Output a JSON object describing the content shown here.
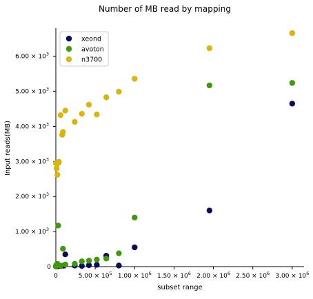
{
  "chart_data": {
    "type": "scatter",
    "title": "Number of MB read by mapping",
    "xlabel": "subset range",
    "ylabel": "Input reads(MB)",
    "xlim": [
      0,
      3150000
    ],
    "ylim": [
      0,
      6800
    ],
    "x_ticks": [
      {
        "value": 0,
        "label": "0"
      },
      {
        "value": 500000,
        "label": "5.00 × 10",
        "exp": "5"
      },
      {
        "value": 1000000,
        "label": "1.00 × 10",
        "exp": "6"
      },
      {
        "value": 1500000,
        "label": "1.50 × 10",
        "exp": "6"
      },
      {
        "value": 2000000,
        "label": "2.00 × 10",
        "exp": "6"
      },
      {
        "value": 2500000,
        "label": "2.50 × 10",
        "exp": "6"
      },
      {
        "value": 3000000,
        "label": "3.00 × 10",
        "exp": "6"
      }
    ],
    "y_ticks": [
      {
        "value": 0,
        "label": "0"
      },
      {
        "value": 1000,
        "label": "1.00 × 10",
        "exp": "3"
      },
      {
        "value": 2000,
        "label": "2.00 × 10",
        "exp": "3"
      },
      {
        "value": 3000,
        "label": "3.00 × 10",
        "exp": "3"
      },
      {
        "value": 4000,
        "label": "4.00 × 10",
        "exp": "3"
      },
      {
        "value": 5000,
        "label": "5.00 × 10",
        "exp": "3"
      },
      {
        "value": 6000,
        "label": "6.00 × 10",
        "exp": "3"
      }
    ],
    "legend_position": "top-left",
    "grid": false,
    "series": [
      {
        "name": "xeond",
        "color": "#0b0b5c",
        "points": [
          [
            1000,
            5
          ],
          [
            5000,
            8
          ],
          [
            10000,
            10
          ],
          [
            20000,
            15
          ],
          [
            30000,
            12
          ],
          [
            60000,
            20
          ],
          [
            100000,
            25
          ],
          [
            120000,
            350
          ],
          [
            240000,
            30
          ],
          [
            330000,
            20
          ],
          [
            420000,
            40
          ],
          [
            520000,
            50
          ],
          [
            640000,
            310
          ],
          [
            800000,
            30
          ],
          [
            1000000,
            550
          ],
          [
            1950000,
            1600
          ],
          [
            3000000,
            4650
          ]
        ]
      },
      {
        "name": "avoton",
        "color": "#3f9b0b",
        "points": [
          [
            1000,
            10
          ],
          [
            5000,
            40
          ],
          [
            10000,
            60
          ],
          [
            20000,
            80
          ],
          [
            30000,
            1170
          ],
          [
            60000,
            30
          ],
          [
            90000,
            510
          ],
          [
            120000,
            60
          ],
          [
            240000,
            80
          ],
          [
            330000,
            150
          ],
          [
            420000,
            170
          ],
          [
            520000,
            200
          ],
          [
            640000,
            230
          ],
          [
            800000,
            380
          ],
          [
            1000000,
            1400
          ],
          [
            1950000,
            5170
          ],
          [
            3000000,
            5240
          ]
        ]
      },
      {
        "name": "n3700",
        "color": "#dbb40c",
        "points": [
          [
            1000,
            2950
          ],
          [
            10000,
            2800
          ],
          [
            20000,
            2620
          ],
          [
            30000,
            2950
          ],
          [
            40000,
            2990
          ],
          [
            60000,
            4320
          ],
          [
            80000,
            3760
          ],
          [
            90000,
            3840
          ],
          [
            120000,
            4450
          ],
          [
            240000,
            4130
          ],
          [
            330000,
            4360
          ],
          [
            420000,
            4620
          ],
          [
            520000,
            4340
          ],
          [
            640000,
            4830
          ],
          [
            800000,
            4990
          ],
          [
            1000000,
            5360
          ],
          [
            1950000,
            6230
          ],
          [
            3000000,
            6660
          ]
        ]
      }
    ]
  }
}
